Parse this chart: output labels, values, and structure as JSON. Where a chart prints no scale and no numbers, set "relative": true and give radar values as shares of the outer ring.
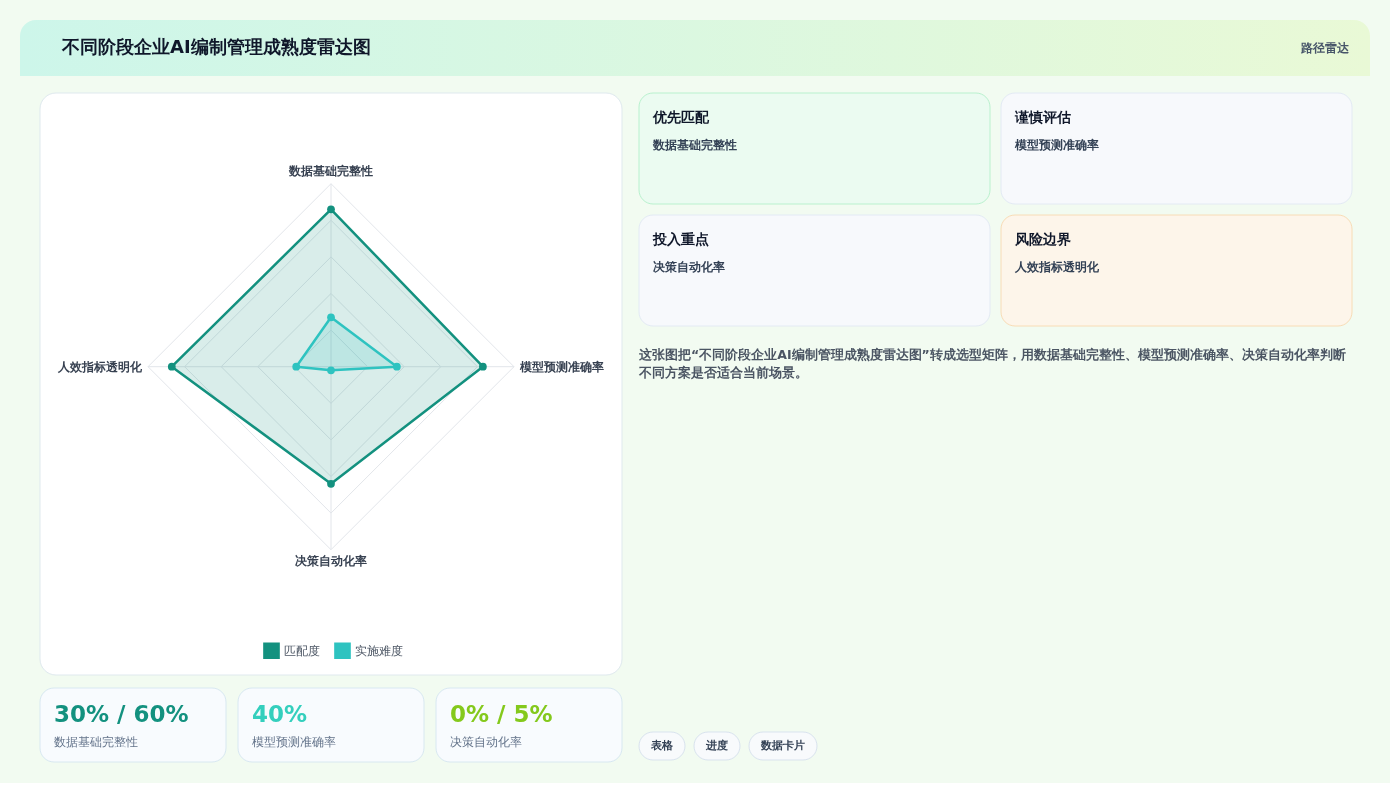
{
  "chart_data": [
    {
      "type": "radar",
      "title": "不同阶段企业AI编制管理成熟度雷达图",
      "categories": [
        "数据基础完整性",
        "模型预测准确率",
        "决策自动化率",
        "人效指标透明化"
      ],
      "series": [
        {
          "name": "匹配度",
          "color": "#13917f",
          "values": [
            0.86,
            0.83,
            0.64,
            0.87
          ]
        },
        {
          "name": "实施难度",
          "color": "#2ec3c0",
          "values": [
            0.27,
            0.36,
            0.02,
            0.19
          ]
        }
      ],
      "relative": true,
      "grid": true,
      "legend": "bottom",
      "marker": "circle"
    },
    {
      "type": "other",
      "title": "路径雷达",
      "annotations": [
        "优先匹配",
        "数据基础完整性",
        "谨慎评估",
        "模型预测准确率",
        "投入重点",
        "决策自动化率",
        "风险边界",
        "人效指标透明化",
        "这张图把“不同阶段企业AI编制管理成熟度雷达图”转成选型矩阵，用数据基础完整性、模型预测准确率、决策自动化率判断不同方案是否适合当前场景。",
        "表格",
        "进度",
        "数据卡片"
      ],
      "colors": [
        "#ebfbf1",
        "#f7f9fc",
        "#f7f9fc",
        "#fdf5ea"
      ]
    },
    {
      "type": "other",
      "annotations": [
        "30% / 60%",
        "数据基础完整性",
        "40%",
        "模型预测准确率",
        "0% / 5%",
        "决策自动化率"
      ],
      "colors": [
        "#13917f",
        "#34cfbd",
        "#84c91c"
      ]
    }
  ]
}
